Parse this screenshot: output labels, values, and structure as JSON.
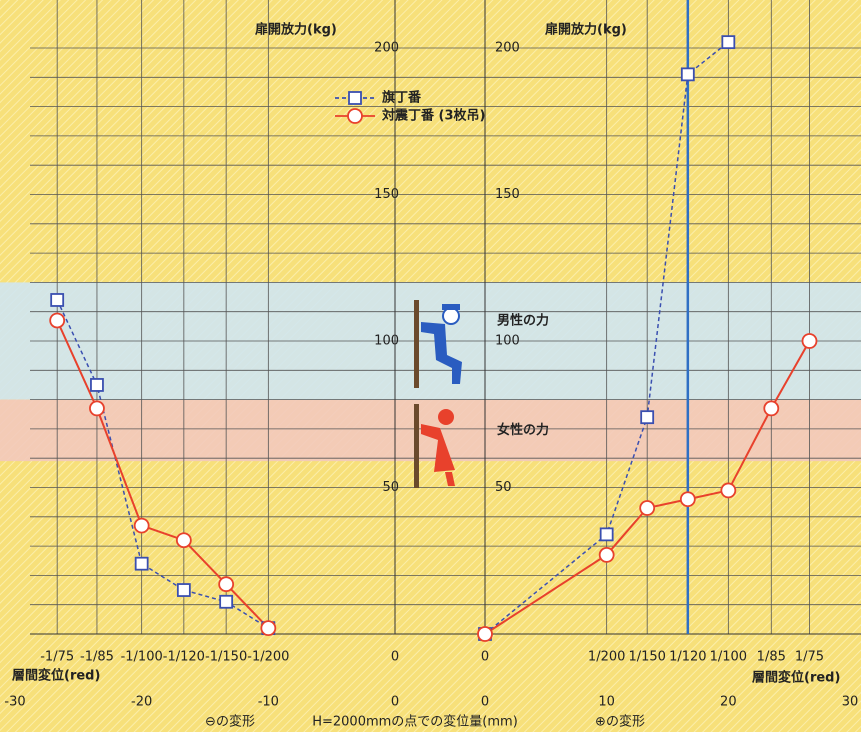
{
  "chart_data": {
    "type": "line",
    "ylabel": "扉開放力(kg)",
    "xlabel": "層間変位(red)",
    "note": "H=2000mmの点での変位量(mm)",
    "neg_label": "⊖の変形",
    "pos_label": "⊕の変形",
    "ylim": [
      0,
      200
    ],
    "yticks": [
      50,
      100,
      150,
      200
    ],
    "minor_yticks": [
      10,
      20,
      30,
      40,
      60,
      70,
      80,
      90,
      110,
      120,
      130,
      140,
      160,
      170,
      180,
      190
    ],
    "grid": true,
    "bands": [
      {
        "label": "男性の力",
        "range": [
          80,
          120
        ],
        "color": "#cfe6f1"
      },
      {
        "label": "女性の力",
        "range": [
          59,
          80
        ],
        "color": "#f2c9bd"
      }
    ],
    "series": [
      {
        "name": "旗丁番",
        "color": "#3a4fb0",
        "marker": "square",
        "dash": true
      },
      {
        "name": "対震丁番 (3枚吊)",
        "color": "#e8412c",
        "marker": "circle",
        "dash": false
      }
    ],
    "vline": {
      "x": 16.67,
      "color": "#2f6fc4"
    },
    "panels": [
      {
        "xlim": [
          -30,
          0
        ],
        "xticks": [
          -30,
          -20,
          -10,
          0
        ],
        "drift_ticks": [
          {
            "value": -26.67,
            "label": "-1/75"
          },
          {
            "value": -23.53,
            "label": "-1/85"
          },
          {
            "value": -20,
            "label": "-1/100"
          },
          {
            "value": -16.67,
            "label": "-1/120"
          },
          {
            "value": -13.33,
            "label": "-1/150"
          },
          {
            "value": -10,
            "label": "-1/200"
          },
          0
        ],
        "x": [
          -26.67,
          -23.53,
          -20,
          -16.67,
          -13.33,
          -10
        ],
        "series": [
          {
            "values": [
              114,
              85,
              24,
              15,
              11,
              2
            ]
          },
          {
            "values": [
              107,
              77,
              37,
              32,
              17,
              2
            ]
          }
        ]
      },
      {
        "xlim": [
          0,
          30
        ],
        "xticks": [
          0,
          10,
          20,
          30
        ],
        "drift_ticks": [
          0,
          {
            "value": 10,
            "label": "1/200"
          },
          {
            "value": 13.33,
            "label": "1/150"
          },
          {
            "value": 16.67,
            "label": "1/120"
          },
          {
            "value": 20,
            "label": "1/100"
          },
          {
            "value": 23.53,
            "label": "1/85"
          },
          {
            "value": 26.67,
            "label": "1/75"
          }
        ],
        "x": [
          0,
          10,
          13.33,
          16.67,
          20,
          23.53,
          26.67
        ],
        "series": [
          {
            "values": [
              0,
              34,
              74,
              191,
              202,
              null,
              null
            ]
          },
          {
            "values": [
              0,
              27,
              43,
              46,
              49,
              77,
              100
            ]
          }
        ]
      }
    ]
  }
}
